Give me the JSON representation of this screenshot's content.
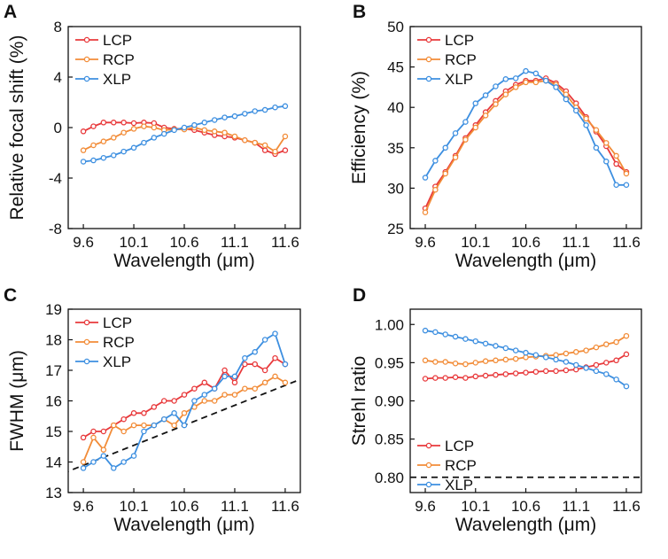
{
  "colors": {
    "LCP": "#e8393b",
    "RCP": "#f28c38",
    "XLP": "#3d8fe0",
    "axis": "#111111",
    "ref_line": "#111111"
  },
  "x_ticks": [
    "9.6",
    "10.1",
    "10.6",
    "11.1",
    "11.6"
  ],
  "chart_data": [
    {
      "panel": "A",
      "type": "line",
      "xlabel": "Wavelength (μm)",
      "ylabel": "Relative focal shift (%)",
      "xlim": [
        9.45,
        11.75
      ],
      "ylim": [
        -8,
        8
      ],
      "yticks": [
        -8,
        -4,
        0,
        4,
        8
      ],
      "ytick_labels": [
        "-8",
        "-4",
        "0",
        "4",
        "8"
      ],
      "legend": [
        "LCP",
        "RCP",
        "XLP"
      ],
      "legend_position": "top-left",
      "x": [
        9.6,
        9.7,
        9.8,
        9.9,
        10.0,
        10.1,
        10.2,
        10.3,
        10.4,
        10.5,
        10.6,
        10.7,
        10.8,
        10.9,
        11.0,
        11.1,
        11.2,
        11.3,
        11.4,
        11.5,
        11.6
      ],
      "series": [
        {
          "name": "LCP",
          "values": [
            -0.3,
            0.1,
            0.4,
            0.4,
            0.4,
            0.35,
            0.4,
            0.35,
            0.0,
            -0.1,
            -0.1,
            -0.2,
            -0.4,
            -0.6,
            -0.7,
            -0.8,
            -1.0,
            -1.2,
            -1.8,
            -2.1,
            -1.8
          ]
        },
        {
          "name": "RCP",
          "values": [
            -1.8,
            -1.4,
            -1.1,
            -0.8,
            -0.4,
            -0.1,
            0.1,
            0.0,
            -0.2,
            -0.15,
            -0.15,
            0.0,
            -0.2,
            -0.3,
            -0.4,
            -0.7,
            -1.0,
            -1.2,
            -1.4,
            -1.9,
            -0.7
          ]
        },
        {
          "name": "XLP",
          "values": [
            -2.7,
            -2.6,
            -2.4,
            -2.2,
            -1.9,
            -1.6,
            -1.2,
            -0.8,
            -0.5,
            -0.2,
            0.0,
            0.2,
            0.4,
            0.6,
            0.8,
            0.9,
            1.1,
            1.3,
            1.4,
            1.6,
            1.7
          ]
        }
      ]
    },
    {
      "panel": "B",
      "type": "line",
      "xlabel": "Wavelength (μm)",
      "ylabel": "Efficiency (%)",
      "xlim": [
        9.45,
        11.75
      ],
      "ylim": [
        25,
        50
      ],
      "yticks": [
        25,
        30,
        35,
        40,
        45,
        50
      ],
      "ytick_labels": [
        "25",
        "30",
        "35",
        "40",
        "45",
        "50"
      ],
      "legend": [
        "LCP",
        "RCP",
        "XLP"
      ],
      "legend_position": "top-left",
      "x": [
        9.6,
        9.7,
        9.8,
        9.9,
        10.0,
        10.1,
        10.2,
        10.3,
        10.4,
        10.5,
        10.6,
        10.7,
        10.8,
        10.9,
        11.0,
        11.1,
        11.2,
        11.3,
        11.4,
        11.5,
        11.6
      ],
      "series": [
        {
          "name": "LCP",
          "values": [
            27.5,
            30.2,
            32.0,
            34.0,
            36.2,
            37.8,
            39.4,
            40.8,
            42.0,
            42.8,
            43.3,
            43.3,
            43.6,
            43.0,
            42.0,
            40.5,
            38.8,
            37.0,
            35.2,
            33.0,
            32.0
          ]
        },
        {
          "name": "RCP",
          "values": [
            27.0,
            29.8,
            31.8,
            33.8,
            36.0,
            37.5,
            39.0,
            40.4,
            41.6,
            42.5,
            43.1,
            43.1,
            43.3,
            42.8,
            41.6,
            40.0,
            38.6,
            37.2,
            35.6,
            34.0,
            31.8
          ]
        },
        {
          "name": "XLP",
          "values": [
            31.3,
            33.4,
            35.0,
            36.8,
            38.2,
            40.5,
            41.5,
            42.6,
            43.5,
            43.6,
            44.5,
            44.2,
            43.3,
            42.5,
            41.0,
            39.6,
            37.8,
            35.0,
            33.3,
            30.4,
            30.4
          ]
        }
      ]
    },
    {
      "panel": "C",
      "type": "line",
      "xlabel": "Wavelength (μm)",
      "ylabel": "FWHM (μm)",
      "xlim": [
        9.45,
        11.75
      ],
      "ylim": [
        13,
        19
      ],
      "yticks": [
        13,
        14,
        15,
        16,
        17,
        18,
        19
      ],
      "ytick_labels": [
        "13",
        "14",
        "15",
        "16",
        "17",
        "18",
        "19"
      ],
      "legend": [
        "LCP",
        "RCP",
        "XLP"
      ],
      "legend_position": "top-left",
      "reference_line": {
        "style": "dashed",
        "from": [
          9.3,
          13.5
        ],
        "to": [
          11.9,
          16.9
        ]
      },
      "x": [
        9.6,
        9.7,
        9.8,
        9.9,
        10.0,
        10.1,
        10.2,
        10.3,
        10.4,
        10.5,
        10.6,
        10.7,
        10.8,
        10.9,
        11.0,
        11.1,
        11.2,
        11.3,
        11.4,
        11.5,
        11.6
      ],
      "series": [
        {
          "name": "LCP",
          "values": [
            14.8,
            15.0,
            15.0,
            15.2,
            15.4,
            15.6,
            15.6,
            15.8,
            16.0,
            16.0,
            16.2,
            16.4,
            16.6,
            16.4,
            17.0,
            16.6,
            17.2,
            17.2,
            17.0,
            17.4,
            17.2
          ]
        },
        {
          "name": "RCP",
          "values": [
            14.0,
            14.8,
            14.4,
            15.2,
            15.0,
            15.2,
            15.2,
            15.2,
            15.4,
            15.2,
            15.6,
            15.8,
            16.0,
            16.0,
            16.2,
            16.2,
            16.4,
            16.4,
            16.6,
            16.8,
            16.6
          ]
        },
        {
          "name": "XLP",
          "values": [
            13.8,
            14.0,
            14.2,
            13.8,
            14.0,
            14.2,
            15.0,
            15.2,
            15.4,
            15.6,
            15.2,
            16.0,
            16.2,
            16.4,
            16.8,
            16.8,
            17.4,
            17.6,
            18.0,
            18.2,
            17.2
          ]
        }
      ]
    },
    {
      "panel": "D",
      "type": "line",
      "xlabel": "Wavelength (μm)",
      "ylabel": "Strehl ratio",
      "xlim": [
        9.45,
        11.75
      ],
      "ylim": [
        0.78,
        1.02
      ],
      "yticks": [
        0.8,
        0.85,
        0.9,
        0.95,
        1.0
      ],
      "ytick_labels": [
        "0.80",
        "0.85",
        "0.90",
        "0.95",
        "1.00"
      ],
      "legend": [
        "LCP",
        "RCP",
        "XLP"
      ],
      "legend_position": "bottom-left",
      "reference_line": {
        "style": "dashed",
        "from": [
          9.45,
          0.8
        ],
        "to": [
          11.75,
          0.8
        ]
      },
      "x": [
        9.6,
        9.7,
        9.8,
        9.9,
        10.0,
        10.1,
        10.2,
        10.3,
        10.4,
        10.5,
        10.6,
        10.7,
        10.8,
        10.9,
        11.0,
        11.1,
        11.2,
        11.3,
        11.4,
        11.5,
        11.6
      ],
      "series": [
        {
          "name": "LCP",
          "values": [
            0.929,
            0.93,
            0.93,
            0.931,
            0.93,
            0.932,
            0.933,
            0.934,
            0.935,
            0.936,
            0.937,
            0.938,
            0.939,
            0.939,
            0.94,
            0.941,
            0.944,
            0.947,
            0.95,
            0.953,
            0.961
          ]
        },
        {
          "name": "RCP",
          "values": [
            0.953,
            0.951,
            0.951,
            0.949,
            0.948,
            0.95,
            0.952,
            0.953,
            0.954,
            0.955,
            0.957,
            0.958,
            0.959,
            0.96,
            0.962,
            0.964,
            0.966,
            0.97,
            0.974,
            0.977,
            0.985
          ]
        },
        {
          "name": "XLP",
          "values": [
            0.992,
            0.99,
            0.987,
            0.984,
            0.981,
            0.978,
            0.975,
            0.972,
            0.969,
            0.966,
            0.963,
            0.96,
            0.957,
            0.954,
            0.951,
            0.947,
            0.943,
            0.939,
            0.935,
            0.928,
            0.919
          ]
        }
      ]
    }
  ]
}
